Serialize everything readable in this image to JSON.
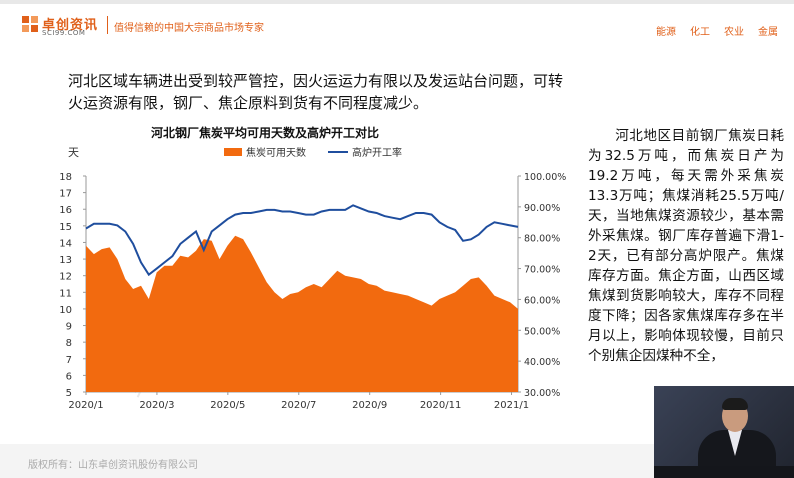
{
  "header": {
    "logo_cn": "卓创资讯",
    "logo_en": "SCI99.COM",
    "slogan": "值得信赖的中国大宗商品市场专家",
    "nav": [
      "能源",
      "化工",
      "农业",
      "金属"
    ],
    "accent_color": "#e0601a"
  },
  "intro_text": "河北区域车辆进出受到较严管控，因火运运力有限以及发运站台问题，可转火运资源有限，钢厂、焦企原料到货有不同程度减少。",
  "right_text": "河北地区目前钢厂焦炭日耗为32.5万吨，而焦炭日产为19.2万吨，每天需外采焦炭13.3万吨；焦煤消耗25.5万吨/天，当地焦煤资源较少，基本需外采焦煤。钢厂库存普遍下滑1-2天，已有部分高炉限产。焦煤库存方面。焦企方面，山西区域焦煤到货影响较大，库存不同程度下降；因各家焦煤库存多在半月以上，影响体现较慢，目前只个别焦企因煤种不全，",
  "footer_text": "版权所有：山东卓创资讯股份有限公司",
  "chart_data": {
    "type": "area+line",
    "title": "河北钢厂焦炭平均可用天数及高炉开工对比",
    "left_axis_unit": "天",
    "ylim_left": [
      5,
      18
    ],
    "ylim_right": [
      30,
      100
    ],
    "left_ticks": [
      "5",
      "6",
      "7",
      "8",
      "9",
      "10",
      "11",
      "12",
      "13",
      "14",
      "15",
      "16",
      "17",
      "18"
    ],
    "right_ticks": [
      "30.00%",
      "40.00%",
      "50.00%",
      "60.00%",
      "70.00%",
      "80.00%",
      "90.00%",
      "100.00%"
    ],
    "x_ticks": [
      "2020/1",
      "2020/3",
      "2020/5",
      "2020/7",
      "2020/9",
      "2020/11",
      "2021/1"
    ],
    "x_range_weeks": [
      0,
      55
    ],
    "legend": [
      "焦炭可用天数",
      "高炉开工率"
    ],
    "legend_position": "top",
    "series": [
      {
        "name": "焦炭可用天数",
        "type": "area",
        "color": "#f26a0f",
        "axis": "left",
        "values": [
          13.8,
          13.3,
          13.6,
          13.7,
          13.0,
          11.8,
          11.2,
          11.4,
          10.6,
          12.2,
          12.6,
          12.6,
          13.2,
          13.1,
          13.5,
          14.2,
          14.1,
          13.0,
          13.8,
          14.4,
          14.2,
          13.4,
          12.5,
          11.6,
          11.0,
          10.6,
          10.9,
          11.0,
          11.3,
          11.5,
          11.3,
          11.8,
          12.3,
          12.0,
          11.9,
          11.8,
          11.5,
          11.4,
          11.1,
          11.0,
          10.9,
          10.8,
          10.6,
          10.4,
          10.2,
          10.6,
          10.8,
          11.0,
          11.4,
          11.8,
          11.9,
          11.4,
          10.8,
          10.6,
          10.4,
          10.0
        ]
      },
      {
        "name": "高炉开工率",
        "type": "line",
        "color": "#1f4e9e",
        "axis": "right",
        "values": [
          83.0,
          84.5,
          84.5,
          84.5,
          84.0,
          82.0,
          78.0,
          72.0,
          68.0,
          70.0,
          72.0,
          74.0,
          78.0,
          80.0,
          82.0,
          76.0,
          82.0,
          84.0,
          86.0,
          87.5,
          88.0,
          88.0,
          88.5,
          89.0,
          89.0,
          88.5,
          88.5,
          88.0,
          87.5,
          87.5,
          88.5,
          89.0,
          89.0,
          89.0,
          90.5,
          89.5,
          88.5,
          88.0,
          87.0,
          86.5,
          86.0,
          87.0,
          88.0,
          88.0,
          87.5,
          85.0,
          83.5,
          82.5,
          79.0,
          79.5,
          81.0,
          83.5,
          85.0,
          84.5,
          84.0,
          83.5
        ]
      }
    ],
    "watermark": "卓创资讯"
  }
}
